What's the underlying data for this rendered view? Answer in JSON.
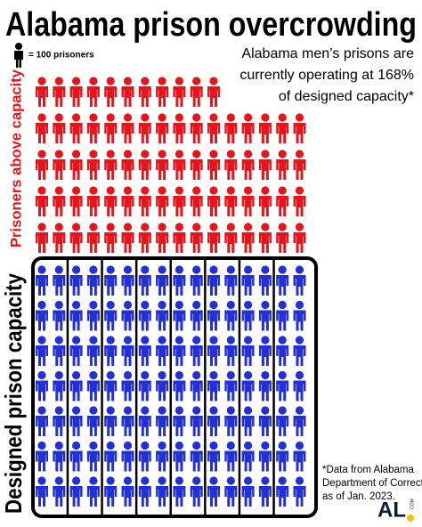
{
  "chart_data": {
    "type": "pictogram",
    "title": "Alabama prison overcrowding",
    "legend_label": "= 100 prisoners",
    "subtitle": [
      "Alabama men’s prisons are",
      "currently operating at 168%",
      "of designed capacity*"
    ],
    "series": [
      {
        "name": "Prisoners above capacity",
        "color": "#e8141b",
        "values": [
          75
        ]
      },
      {
        "name": "Designed prison capacity",
        "color": "#2230d6",
        "values": [
          112
        ]
      }
    ],
    "footnote": [
      "*Data from Alabama",
      "Department of Corrections",
      "as of Jan. 2023."
    ],
    "logo": "AL",
    "logo_suffix": "COM"
  }
}
